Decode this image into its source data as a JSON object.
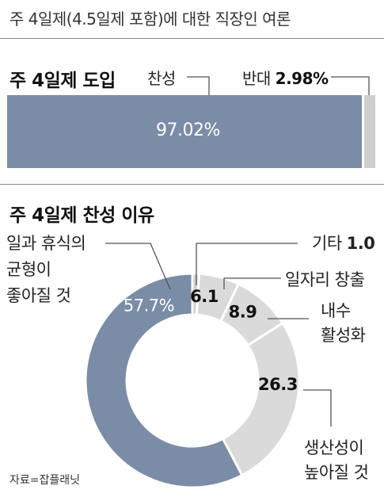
{
  "subtitle": "주 4일제(4.5일제 포함)에 대한 직장인 여론",
  "source": "자료=잡플래닛",
  "chart_data": [
    {
      "type": "bar",
      "title": "주 4일제 도입",
      "categories": [
        "찬성",
        "반대"
      ],
      "values": [
        97.02,
        2.98
      ],
      "value_labels": [
        "97.02%",
        "2.98%"
      ],
      "colors": [
        "#7b8ca6",
        "#cfcfcf"
      ],
      "orientation": "horizontal-stacked"
    },
    {
      "type": "pie",
      "title": "주 4일제 찬성 이유",
      "donut": true,
      "categories": [
        "일과 휴식의 균형이 좋아질 것",
        "기타",
        "일자리 창출",
        "내수 활성화",
        "생산성이 높아질 것"
      ],
      "label_lines": [
        [
          "일과 휴식의",
          "균형이",
          "좋아질 것"
        ],
        [
          "기타"
        ],
        [
          "일자리 창출"
        ],
        [
          "내수",
          "활성화"
        ],
        [
          "생산성이",
          "높아질 것"
        ]
      ],
      "values": [
        57.7,
        1.0,
        6.1,
        8.9,
        26.3
      ],
      "value_labels": [
        "57.7%",
        "1.0",
        "6.1",
        "8.9",
        "26.3"
      ],
      "colors": [
        "#7b8ca6",
        "#cfcfcf",
        "#dadada",
        "#dadada",
        "#dadada"
      ]
    }
  ]
}
